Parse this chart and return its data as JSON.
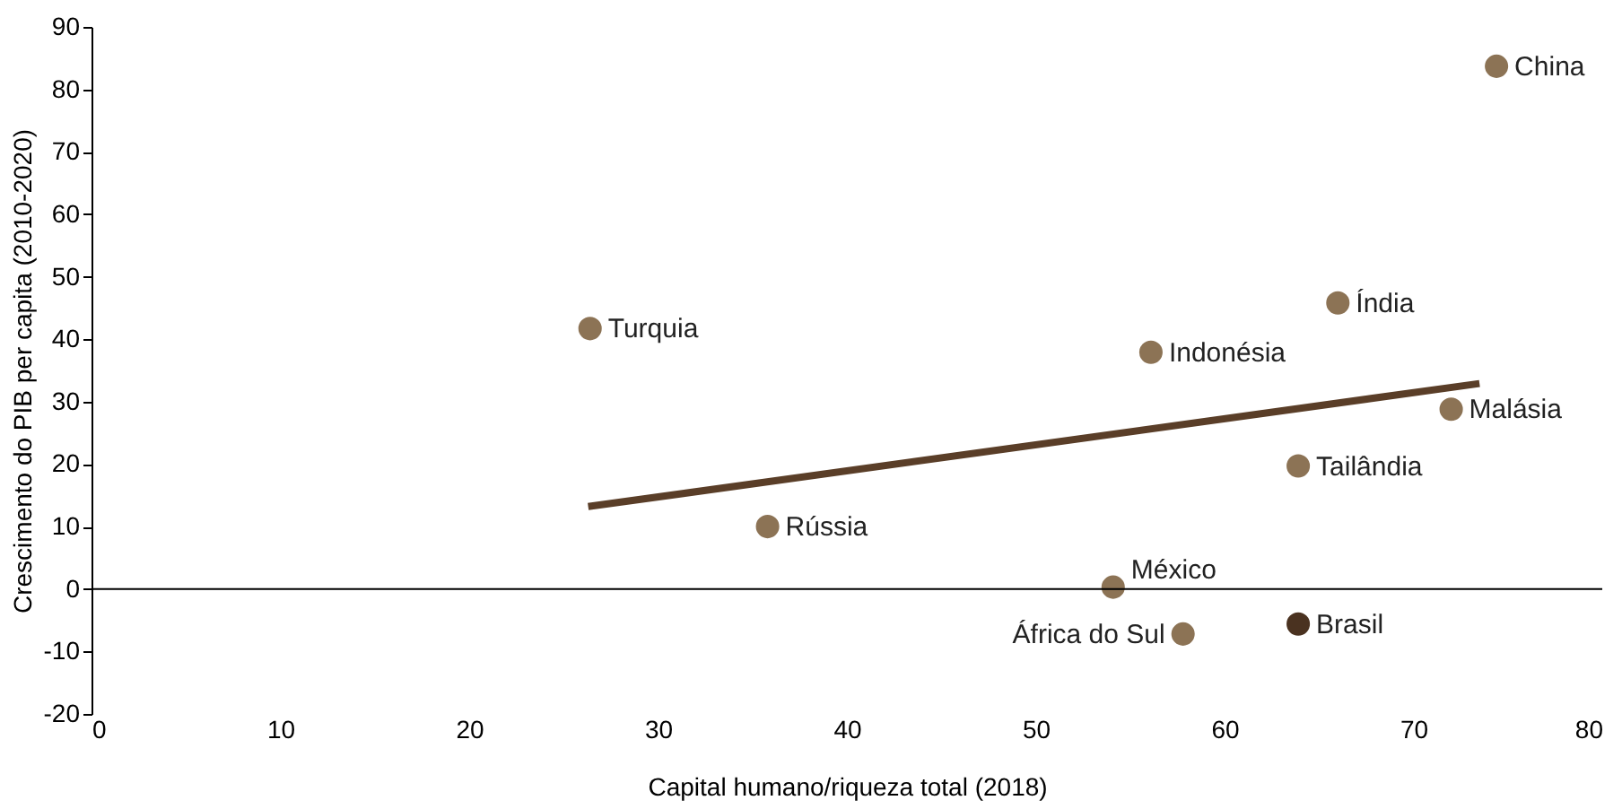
{
  "chart_data": {
    "type": "scatter",
    "xlabel": "Capital humano/riqueza total (2018)",
    "ylabel": "Crescimento do PIB per capita (2010-2020)",
    "xlim": [
      0,
      80
    ],
    "xticks": [
      0,
      10,
      20,
      30,
      40,
      50,
      60,
      70,
      80
    ],
    "ylim": [
      -20,
      90
    ],
    "yticks": [
      -20,
      -10,
      0,
      10,
      20,
      30,
      40,
      50,
      60,
      70,
      80,
      90
    ],
    "grid": false,
    "series": [
      {
        "type": "scatter",
        "marker": "circle",
        "x": [
          74.4,
          26.4,
          66.0,
          56.1,
          72.0,
          63.9,
          35.8,
          54.1,
          57.8,
          63.9
        ],
        "values": [
          83.7,
          41.7,
          45.8,
          37.9,
          28.8,
          19.7,
          10.0,
          0.3,
          -7.2,
          -5.6
        ],
        "colors": [
          "#8c7355",
          "#8c7355",
          "#8c7355",
          "#8c7355",
          "#8c7355",
          "#8c7355",
          "#8c7355",
          "#8c7355",
          "#8c7355",
          "#4a3220"
        ]
      },
      {
        "type": "line",
        "x": [
          26.3,
          73.5
        ],
        "values": [
          13.2,
          32.9
        ],
        "color": "#5a3e28",
        "line_style": "solid"
      }
    ],
    "ref_lines": [
      {
        "axis": "y",
        "value": 0,
        "color": "#000000"
      }
    ],
    "annotations": [
      {
        "text": "China",
        "x": 74.4,
        "y": 83.7
      },
      {
        "text": "Turquia",
        "x": 26.4,
        "y": 41.7
      },
      {
        "text": "Índia",
        "x": 66.0,
        "y": 45.8
      },
      {
        "text": "Indonésia",
        "x": 56.1,
        "y": 37.9
      },
      {
        "text": "Malásia",
        "x": 72.0,
        "y": 28.8
      },
      {
        "text": "Tailândia",
        "x": 63.9,
        "y": 19.7
      },
      {
        "text": "Rússia",
        "x": 35.8,
        "y": 10.0
      },
      {
        "text": "México",
        "x": 54.1,
        "y": 0.3
      },
      {
        "text": "África do Sul",
        "x": 57.8,
        "y": -7.2
      },
      {
        "text": "Brasil",
        "x": 63.9,
        "y": -5.6
      }
    ]
  }
}
